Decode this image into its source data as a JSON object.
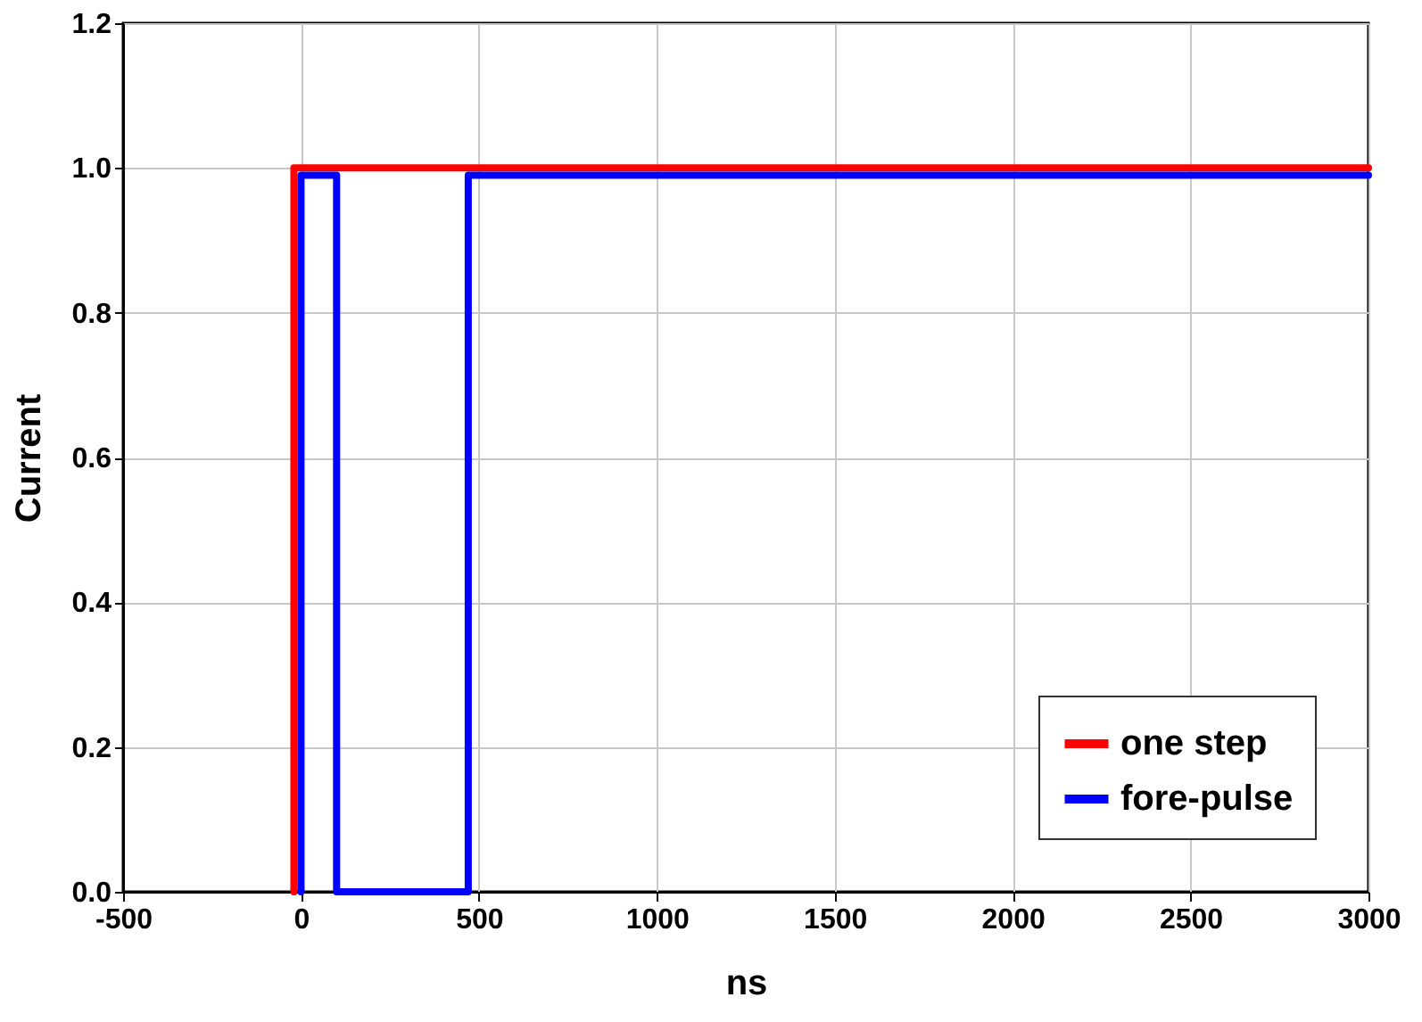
{
  "chart_data": {
    "type": "line",
    "xlabel": "ns",
    "ylabel": "Current",
    "xlim": [
      -500,
      3000
    ],
    "xticks": [
      -500,
      0,
      500,
      1000,
      1500,
      2000,
      2500,
      3000
    ],
    "ylim": [
      0,
      1.2
    ],
    "yticks": [
      {
        "value": 0,
        "label": "0.0"
      },
      {
        "value": 0.2,
        "label": "0.2"
      },
      {
        "value": 0.4,
        "label": "0.4"
      },
      {
        "value": 0.6,
        "label": "0.6"
      },
      {
        "value": 0.8,
        "label": "0.8"
      },
      {
        "value": 1.0,
        "label": "1.0"
      },
      {
        "value": 1.2,
        "label": "1.2"
      }
    ],
    "grid": true,
    "legend": "bottom right",
    "line_style": "solid",
    "marker": "none",
    "series": [
      {
        "name": "one step",
        "color": "#ff0000",
        "x": [
          -20,
          -20,
          3000
        ],
        "values": [
          0,
          1,
          1
        ]
      },
      {
        "name": "fore-pulse",
        "color": "#0000ff",
        "x": [
          0,
          0,
          100,
          100,
          470,
          470,
          3000
        ],
        "values": [
          0,
          0.99,
          0.99,
          0,
          0,
          0.99,
          0.99
        ]
      }
    ]
  }
}
